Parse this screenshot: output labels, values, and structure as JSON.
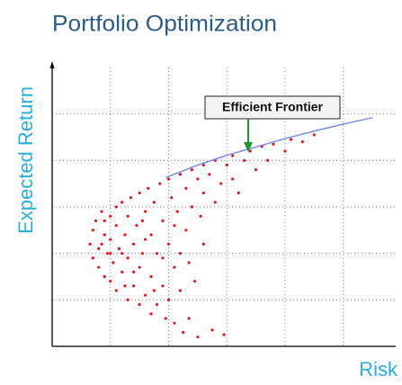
{
  "chart_data": {
    "type": "scatter",
    "title": "Portfolio Optimization",
    "x_label": "Risk",
    "y_label": "Expected Return",
    "annotation": "Efficient Frontier",
    "xlim": [
      0,
      5.9
    ],
    "ylim": [
      0,
      6
    ],
    "xticks": [
      1,
      2,
      3,
      4,
      5
    ],
    "yticks": [
      1,
      2,
      3,
      4,
      5
    ],
    "grid": true,
    "series": [
      {
        "type": "scatter",
        "color": "#e8141c",
        "x": [
          0.65,
          0.7,
          0.7,
          0.75,
          0.8,
          0.8,
          0.85,
          0.9,
          0.9,
          0.95,
          1.0,
          1.0,
          1.0,
          1.05,
          1.1,
          1.1,
          1.1,
          1.15,
          1.2,
          1.2,
          1.25,
          1.3,
          1.3,
          1.3,
          1.35,
          1.4,
          1.4,
          1.45,
          1.5,
          1.5,
          1.5,
          1.55,
          1.6,
          1.6,
          1.65,
          1.7,
          1.7,
          1.7,
          1.75,
          1.8,
          1.8,
          1.85,
          1.9,
          1.9,
          1.95,
          2.0,
          2.0,
          2.0,
          2.05,
          2.1,
          2.1,
          2.15,
          2.2,
          2.2,
          2.25,
          2.3,
          2.3,
          2.35,
          2.4,
          2.4,
          2.45,
          2.5,
          2.5,
          2.55,
          2.6,
          2.6,
          2.7,
          2.75,
          2.8,
          2.8,
          2.9,
          2.95,
          3.0,
          3.1,
          3.1,
          3.2,
          3.3,
          3.4,
          3.5,
          3.6,
          3.7,
          3.8,
          4.0,
          4.1,
          4.3,
          4.5,
          1.2,
          1.6,
          1.4,
          1.9,
          2.2,
          1.0,
          0.9,
          1.75,
          2.1,
          2.6,
          2.35,
          1.55,
          1.25,
          0.85
        ],
        "values": [
          2.2,
          2.5,
          1.9,
          2.7,
          2.1,
          1.7,
          2.9,
          2.4,
          1.5,
          2.0,
          2.8,
          1.4,
          2.3,
          1.8,
          3.0,
          2.6,
          1.2,
          2.1,
          1.6,
          3.1,
          2.4,
          1.0,
          2.8,
          1.9,
          3.2,
          1.3,
          2.2,
          2.6,
          0.9,
          3.3,
          1.7,
          2.0,
          2.9,
          1.1,
          3.4,
          0.7,
          2.4,
          1.5,
          3.1,
          2.0,
          0.9,
          3.5,
          2.7,
          1.3,
          0.6,
          3.6,
          2.2,
          1.0,
          3.2,
          1.7,
          0.5,
          2.9,
          3.7,
          1.2,
          0.3,
          3.4,
          2.5,
          0.6,
          3.8,
          3.0,
          1.4,
          3.6,
          0.2,
          2.8,
          3.9,
          3.3,
          3.7,
          0.35,
          3.1,
          4.0,
          3.5,
          0.25,
          3.9,
          4.1,
          3.6,
          3.3,
          4.0,
          4.2,
          3.8,
          4.3,
          4.0,
          4.35,
          4.2,
          4.45,
          4.4,
          4.55,
          2.0,
          2.3,
          1.6,
          1.9,
          2.0,
          2.0,
          2.7,
          1.2,
          2.6,
          2.2,
          1.8,
          2.7,
          1.3,
          2.2
        ]
      },
      {
        "type": "line",
        "color": "#7b8fe0",
        "x": [
          1.95,
          2.5,
          3.0,
          3.5,
          4.0,
          4.5,
          5.0,
          5.5
        ],
        "values": [
          3.63,
          3.9,
          4.11,
          4.29,
          4.47,
          4.63,
          4.78,
          4.92
        ]
      }
    ]
  }
}
